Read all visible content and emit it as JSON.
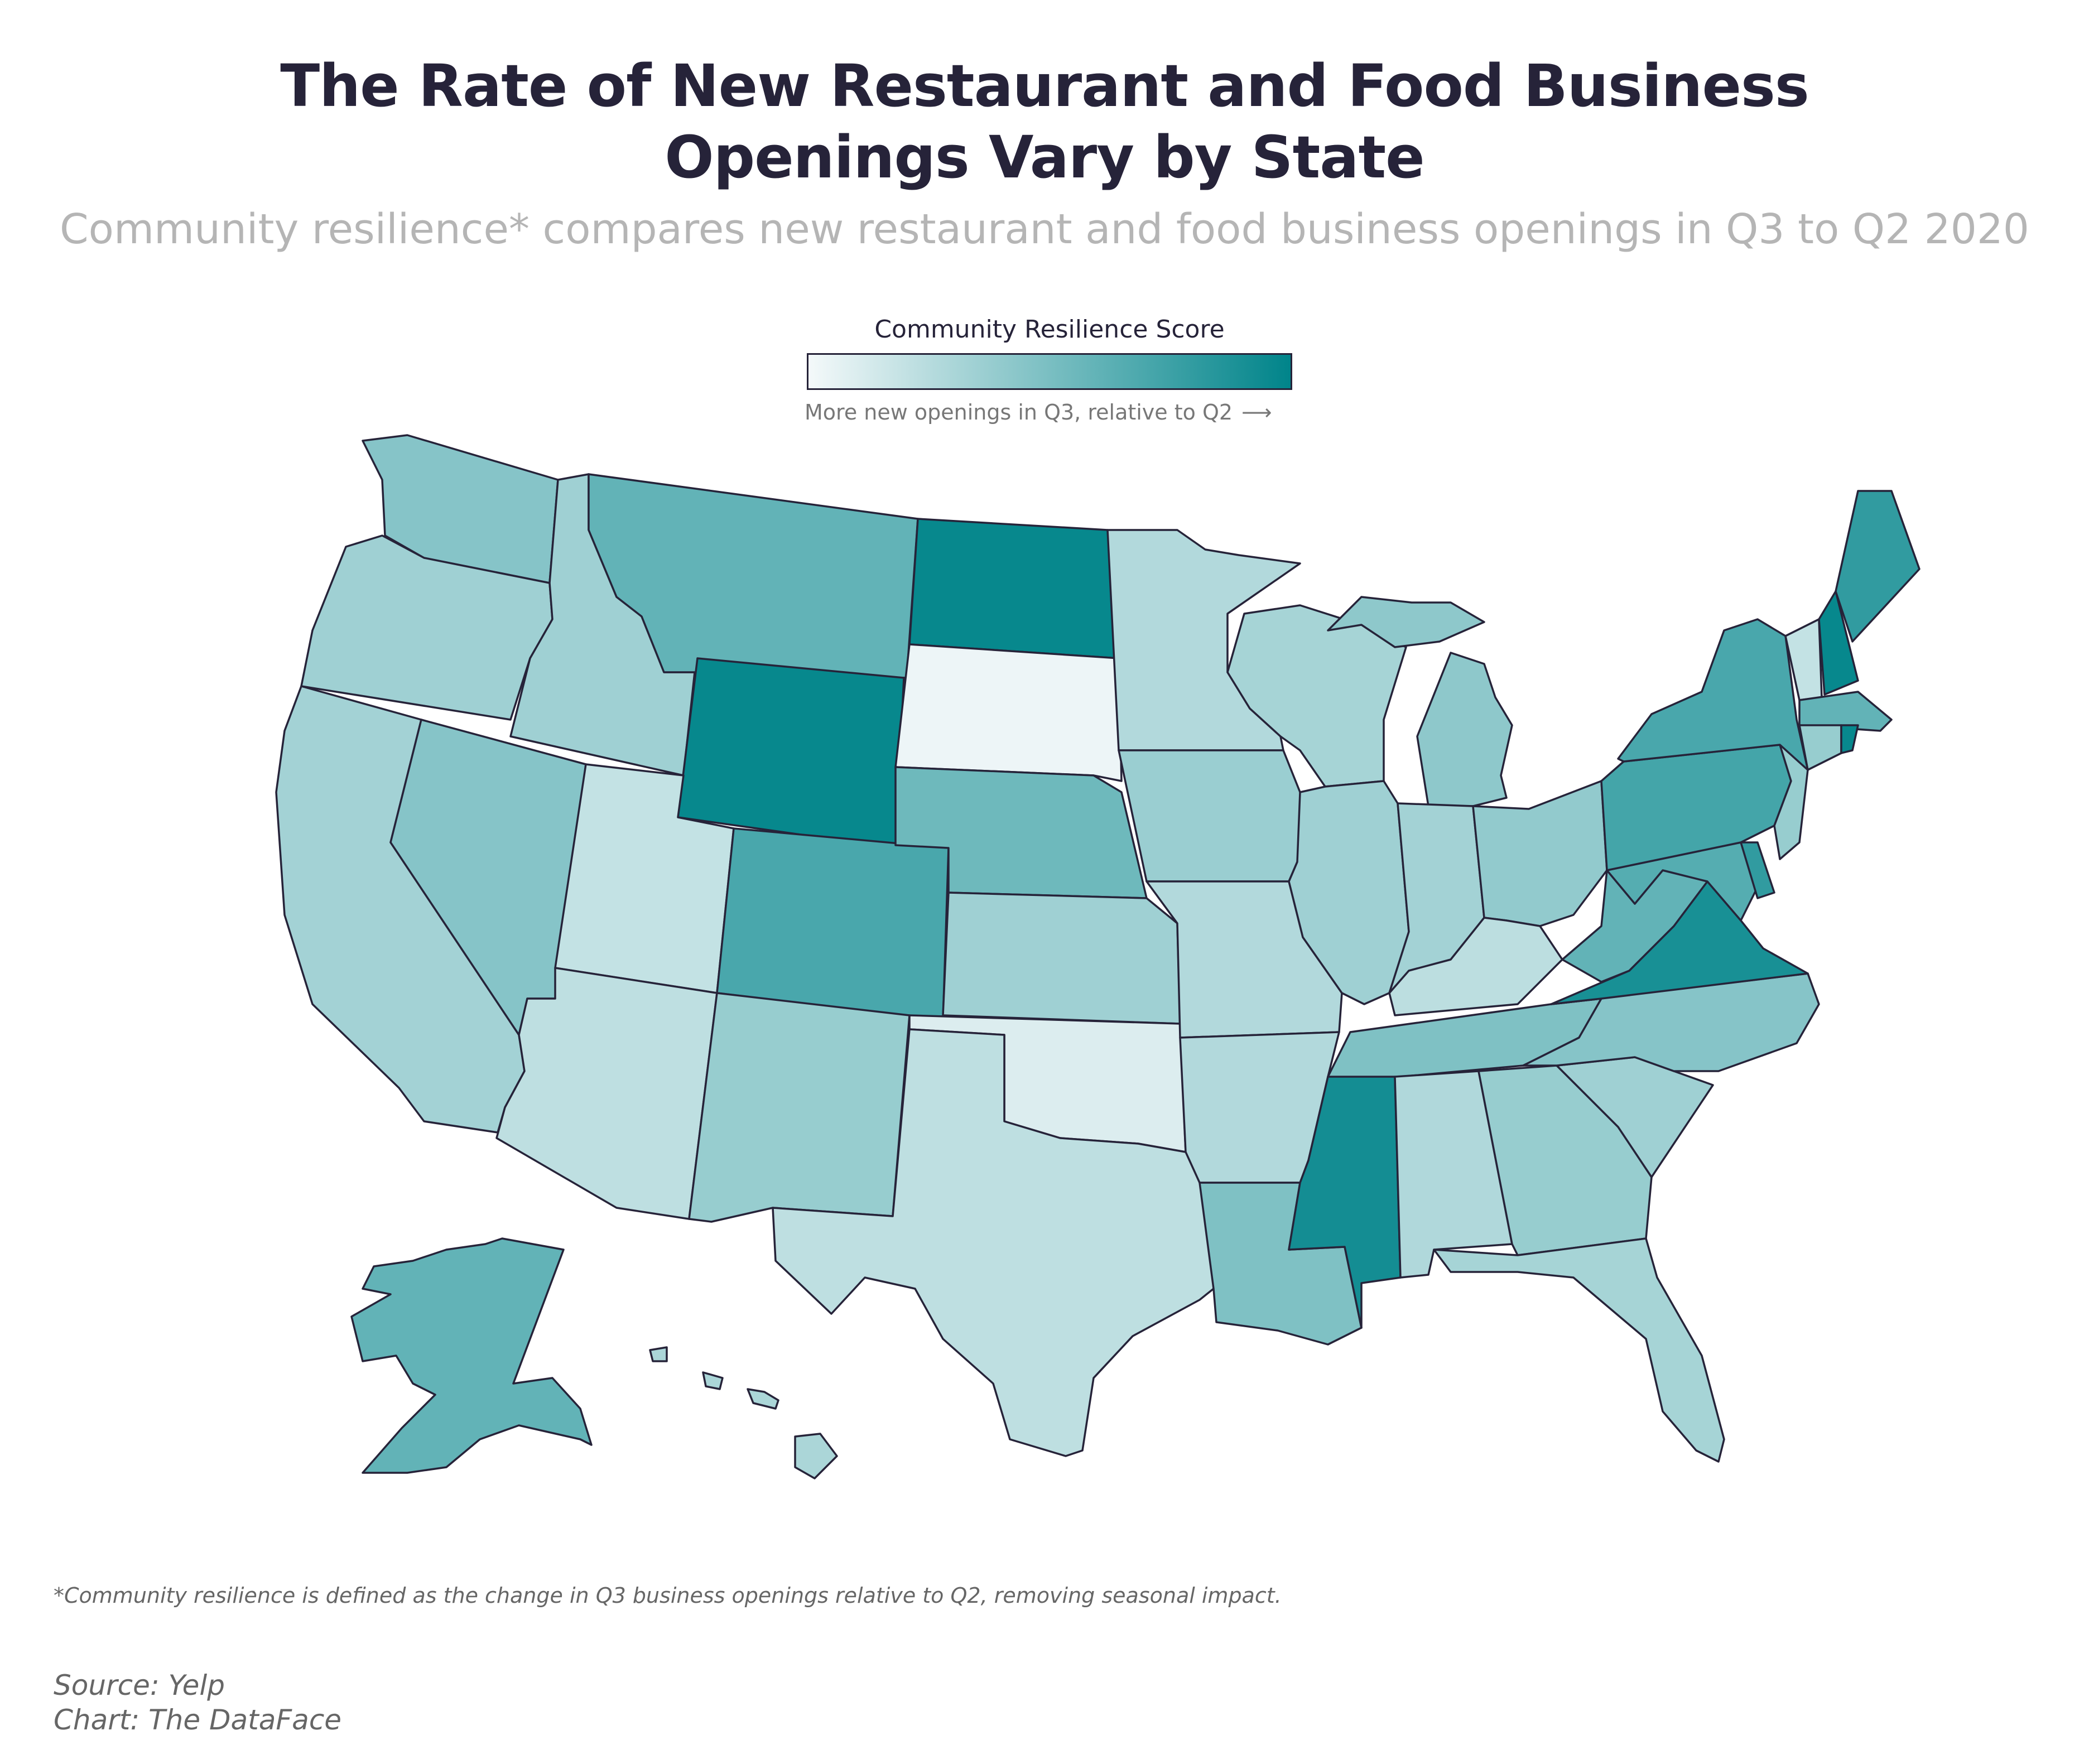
{
  "title_lines": [
    "The Rate of New Restaurant and Food Business",
    "Openings Vary by State"
  ],
  "subtitle": "Community resilience* compares new restaurant and food business openings in Q3 to Q2 2020",
  "legend": {
    "title": "Community Resilience Score",
    "note": "More new openings in Q3, relative to Q2",
    "arrow": "⟶",
    "color_low": "#f4f9fa",
    "color_high": "#00848a"
  },
  "footnote": "*Community resilience is defined as the change in Q3 business openings relative to Q2, removing seasonal impact.",
  "source_lines": [
    "Source: Yelp",
    "Chart: The DataFace"
  ],
  "chart_data": {
    "type": "choropleth",
    "scale": "sequential",
    "scale_range": [
      0,
      1
    ],
    "note": "values are relative shade intensities (0 = lightest, 1 = darkest); no numeric values printed",
    "states": {
      "WA": 0.45,
      "OR": 0.35,
      "CA": 0.33,
      "NV": 0.45,
      "ID": 0.35,
      "MT": 0.6,
      "WY": 0.97,
      "UT": 0.2,
      "AZ": 0.22,
      "CO": 0.7,
      "NM": 0.38,
      "ND": 0.97,
      "SD": 0.03,
      "NE": 0.55,
      "KS": 0.35,
      "OK": 0.1,
      "TX": 0.22,
      "MN": 0.27,
      "IA": 0.37,
      "MO": 0.27,
      "AR": 0.27,
      "LA": 0.48,
      "WI": 0.32,
      "IL": 0.35,
      "MI": 0.42,
      "IN": 0.33,
      "OH": 0.4,
      "KY": 0.23,
      "TN": 0.48,
      "MS": 0.92,
      "AL": 0.28,
      "GA": 0.38,
      "FL": 0.32,
      "SC": 0.35,
      "NC": 0.45,
      "VA": 0.9,
      "WV": 0.6,
      "MD": 0.65,
      "DE": 0.8,
      "PA": 0.72,
      "NJ": 0.38,
      "NY": 0.7,
      "CT": 0.38,
      "RI": 0.97,
      "MA": 0.6,
      "VT": 0.2,
      "NH": 0.97,
      "ME": 0.8,
      "AK": 0.6,
      "HI": 0.3
    }
  }
}
